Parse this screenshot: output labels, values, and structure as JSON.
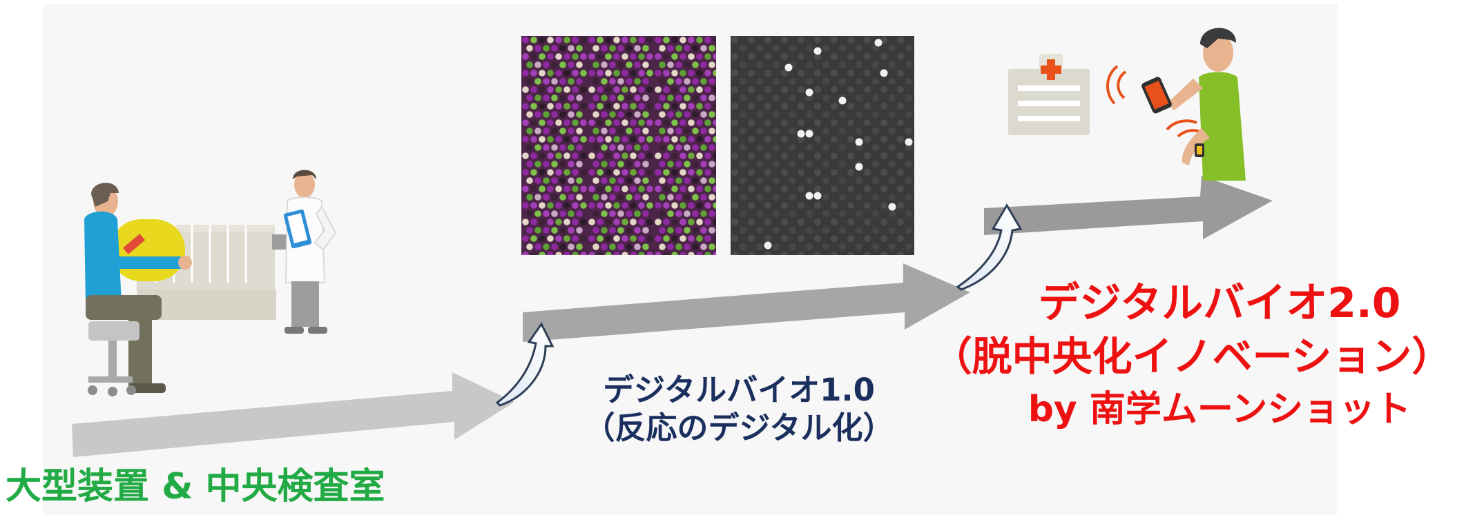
{
  "stage1": {
    "label": "大型装置 & 中央検査室"
  },
  "stage2": {
    "title": "デジタルバイオ1.0",
    "subtitle": "（反応のデジタル化）"
  },
  "stage3": {
    "title": "デジタルバイオ2.0",
    "subtitle": "（脱中央化イノベーション）",
    "byline": "by 南学ムーンショット"
  },
  "colors": {
    "stage1_label": "#22aa44",
    "stage2_label": "#1b2f5e",
    "stage3_label": "#ee1111",
    "arrow_light": "#c8c8c8",
    "arrow_dark": "#a0a0a0"
  }
}
